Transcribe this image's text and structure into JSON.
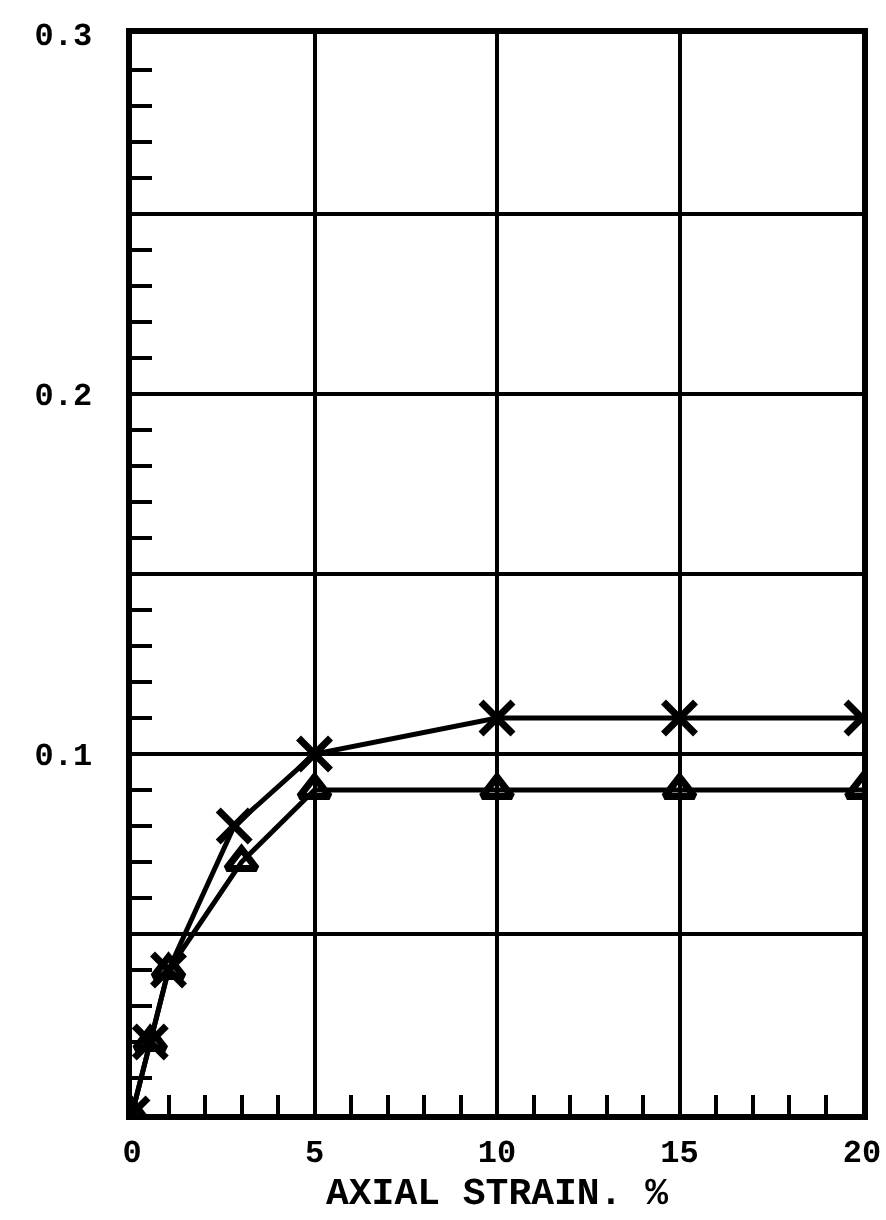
{
  "chart_data": {
    "type": "line",
    "xlabel": "AXIAL STRAIN. %",
    "xlim": [
      0,
      20
    ],
    "ylim": [
      0,
      0.3
    ],
    "xticks": [
      0,
      5,
      10,
      15,
      20
    ],
    "yticks": [
      {
        "value": 0.05,
        "label": null
      },
      0.1,
      {
        "value": 0.15,
        "label": null
      },
      0.2,
      {
        "value": 0.25,
        "label": null
      },
      0.3
    ],
    "grid": true,
    "line_style": "solid",
    "series": [
      {
        "color": "#000000",
        "marker": "cross",
        "x": [
          0,
          0.5,
          1,
          2.8,
          5,
          10,
          15,
          20
        ],
        "values": [
          0,
          0.02,
          0.04,
          0.08,
          0.1,
          0.11,
          0.11,
          0.11
        ]
      },
      {
        "color": "#000000",
        "marker": "triangle",
        "x": [
          0,
          0.5,
          1,
          3,
          5,
          10,
          15,
          20
        ],
        "values": [
          0,
          0.02,
          0.04,
          0.07,
          0.09,
          0.09,
          0.09,
          0.09
        ]
      }
    ]
  }
}
